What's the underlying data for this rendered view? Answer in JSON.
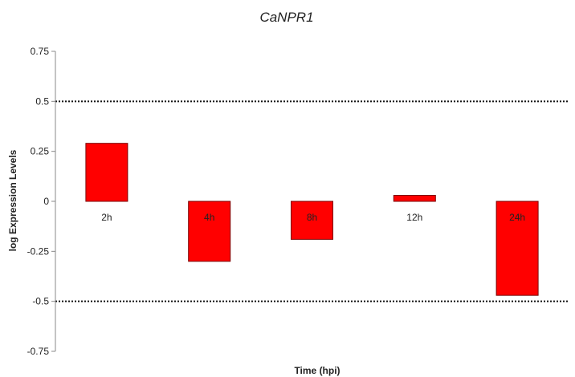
{
  "chart_data": {
    "type": "bar",
    "title": "CaNPR1",
    "xlabel": "Time (hpi)",
    "ylabel": "log Expression Levels",
    "categories": [
      "2h",
      "4h",
      "8h",
      "12h",
      "24h"
    ],
    "values": [
      0.29,
      -0.3,
      -0.19,
      0.03,
      -0.47
    ],
    "ylim": [
      -0.75,
      0.75
    ],
    "yticks": [
      0.75,
      0.5,
      0.25,
      0,
      -0.25,
      -0.5,
      -0.75
    ],
    "ytick_labels": [
      "0.75",
      "0.5",
      "0.25",
      "0",
      "-0.25",
      "-0.5",
      "-0.75"
    ],
    "reference_lines": [
      0.5,
      -0.5
    ],
    "bar_color": "#ff0000",
    "bar_edge_color": "#7a0000",
    "reference_line_color": "#111111",
    "grid": false,
    "legend": false
  }
}
